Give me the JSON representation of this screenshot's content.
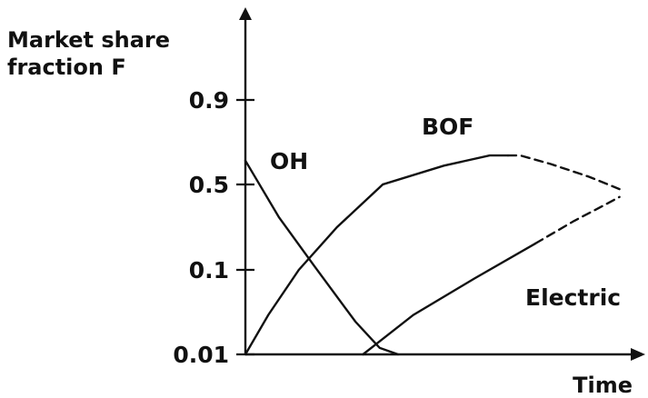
{
  "chart_data": {
    "type": "line",
    "title": "",
    "ylabel": "Market share\nfraction F",
    "xlabel": "Time",
    "yscale": "logit",
    "yticks": [
      "0.9",
      "0.5",
      "0.1",
      "0.01"
    ],
    "ytick_values": [
      0.9,
      0.5,
      0.1,
      0.01
    ],
    "grid": false,
    "legend": "none",
    "series": [
      {
        "name": "OH",
        "points": [
          [
            0,
            0.65
          ],
          [
            0.22,
            0.3
          ],
          [
            0.45,
            0.11
          ],
          [
            0.72,
            0.025
          ],
          [
            0.88,
            0.012
          ],
          [
            1.0,
            0.01
          ]
        ],
        "projected_from": null
      },
      {
        "name": "BOF",
        "points": [
          [
            0,
            0.01
          ],
          [
            0.15,
            0.03
          ],
          [
            0.35,
            0.1
          ],
          [
            0.6,
            0.25
          ],
          [
            0.9,
            0.5
          ],
          [
            1.3,
            0.62
          ],
          [
            1.6,
            0.68
          ],
          [
            1.8,
            0.68
          ],
          [
            2.0,
            0.63
          ],
          [
            2.25,
            0.55
          ],
          [
            2.45,
            0.47
          ]
        ],
        "projected_from": 1.72
      },
      {
        "name": "Electric",
        "points": [
          [
            0.77,
            0.01
          ],
          [
            1.1,
            0.03
          ],
          [
            1.5,
            0.08
          ],
          [
            1.9,
            0.18
          ],
          [
            2.15,
            0.28
          ],
          [
            2.35,
            0.37
          ],
          [
            2.45,
            0.42
          ]
        ],
        "projected_from": 1.9
      }
    ]
  }
}
